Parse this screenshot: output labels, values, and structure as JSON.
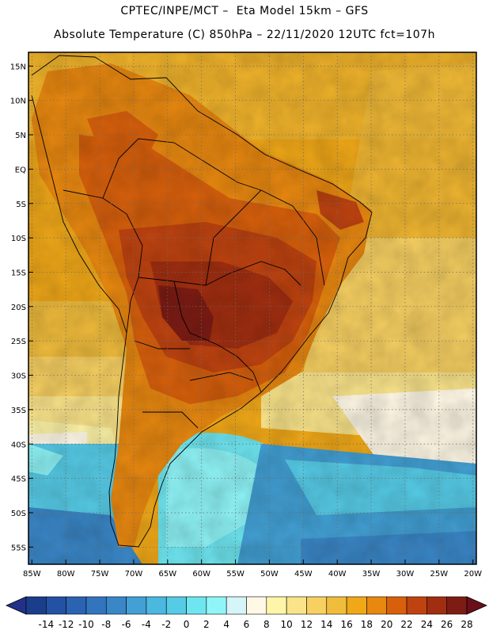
{
  "header": {
    "line1": "CPTEC/INPE/MCT –  Eta Model 15km – GFS",
    "line2": "Absolute Temperature (C) 850hPa – 22/11/2020 12UTC fct=107h"
  },
  "map": {
    "lat_labels": [
      "15N",
      "10N",
      "5N",
      "EQ",
      "5S",
      "10S",
      "15S",
      "20S",
      "25S",
      "30S",
      "35S",
      "40S",
      "45S",
      "50S",
      "55S"
    ],
    "lat_values": [
      15,
      10,
      5,
      0,
      -5,
      -10,
      -15,
      -20,
      -25,
      -30,
      -35,
      -40,
      -45,
      -50,
      -55
    ],
    "lon_labels": [
      "85W",
      "80W",
      "75W",
      "70W",
      "65W",
      "60W",
      "55W",
      "50W",
      "45W",
      "40W",
      "35W",
      "30W",
      "25W",
      "20W"
    ],
    "lon_values": [
      -85,
      -80,
      -75,
      -70,
      -65,
      -60,
      -55,
      -50,
      -45,
      -40,
      -35,
      -30,
      -25,
      -20
    ],
    "lon_range": [
      -85.5,
      -19.5
    ],
    "lat_range": [
      -57.5,
      17.0
    ],
    "grid": "dotted",
    "colormap": "temperature"
  },
  "colorbar": {
    "labels": [
      "-14",
      "-12",
      "-10",
      "-8",
      "-6",
      "-4",
      "-2",
      "0",
      "2",
      "4",
      "6",
      "8",
      "10",
      "12",
      "14",
      "16",
      "18",
      "20",
      "22",
      "24",
      "26",
      "28"
    ],
    "colors": [
      "#1a3d8c",
      "#2351a3",
      "#2b63b3",
      "#3275be",
      "#3a87c8",
      "#42a0d4",
      "#4bb8e0",
      "#56cbe6",
      "#6ee6f0",
      "#8ff5f8",
      "#d6f5f8",
      "#fff8e6",
      "#fff5a8",
      "#fae48a",
      "#f7d062",
      "#f0bc3c",
      "#f0a818",
      "#e88810",
      "#d8600c",
      "#bf4310",
      "#a12e10",
      "#7d1c14"
    ],
    "under_color": "#21318a",
    "over_color": "#6a0f1a"
  }
}
